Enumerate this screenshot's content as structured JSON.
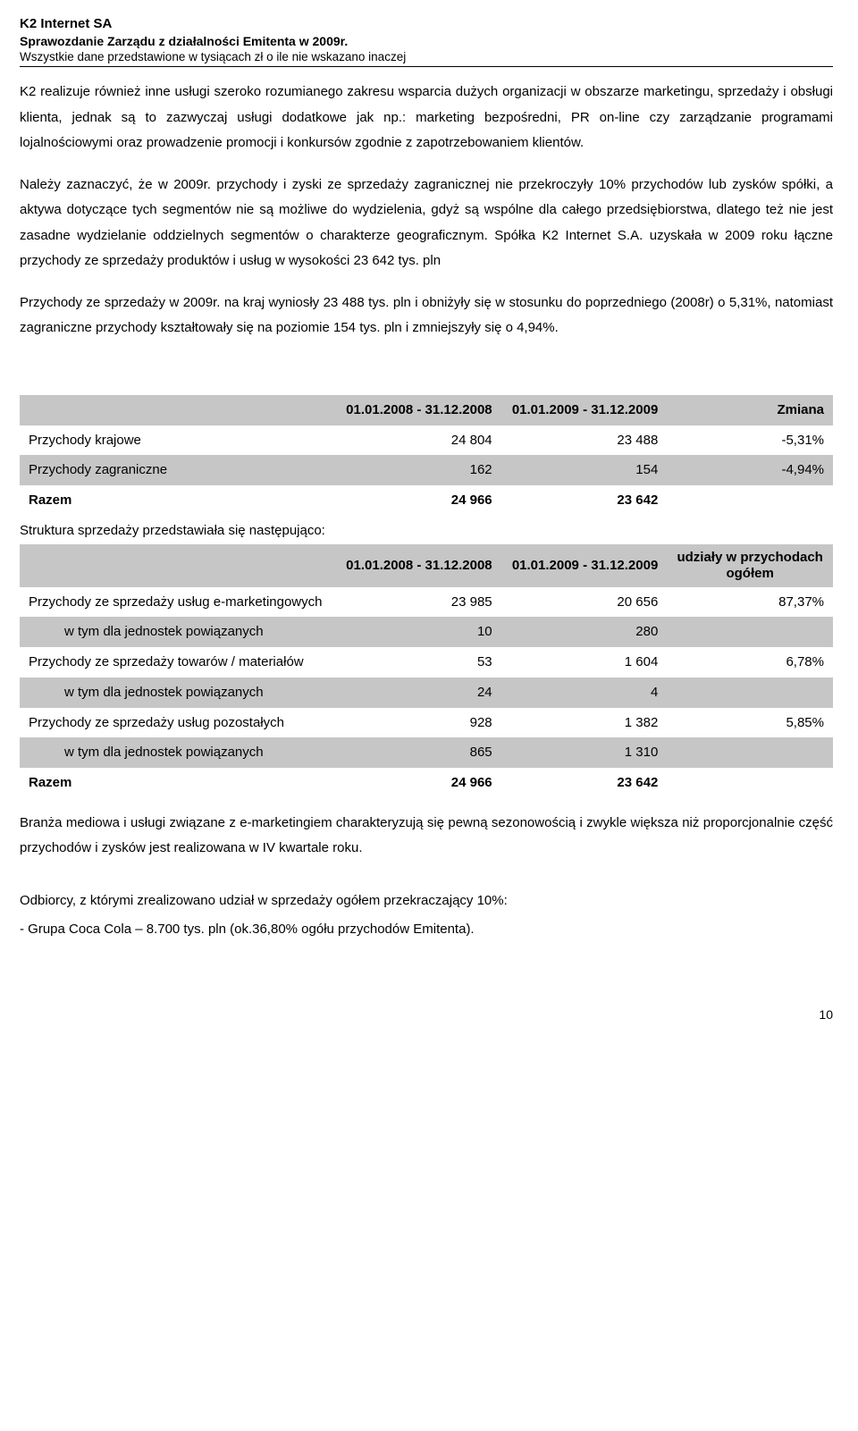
{
  "header": {
    "company": "K2 Internet SA",
    "report_title": "Sprawozdanie Zarządu z działalności Emitenta w 2009r.",
    "disclaimer": "Wszystkie dane przedstawione w tysiącach zł o ile nie wskazano inaczej"
  },
  "paragraphs": {
    "p1": "K2 realizuje również inne usługi szeroko rozumianego zakresu wsparcia dużych organizacji w obszarze marketingu, sprzedaży i obsługi klienta, jednak są to zazwyczaj usługi dodatkowe jak np.: marketing bezpośredni, PR on-line czy zarządzanie programami lojalnościowymi oraz prowadzenie promocji i konkursów zgodnie z zapotrzebowaniem klientów.",
    "p2": "Należy zaznaczyć, że w 2009r. przychody i zyski ze sprzedaży zagranicznej nie przekroczyły 10% przychodów lub zysków spółki, a aktywa dotyczące tych segmentów nie są możliwe do wydzielenia, gdyż są wspólne dla całego przedsiębiorstwa, dlatego też nie jest zasadne wydzielanie oddzielnych segmentów o charakterze geograficznym. Spółka K2 Internet S.A. uzyskała w 2009 roku łączne przychody ze sprzedaży produktów i usług w wysokości 23 642 tys. pln",
    "p3": "Przychody ze sprzedaży w 2009r. na kraj wyniosły 23 488 tys. pln i obniżyły się w stosunku do poprzedniego (2008r) o 5,31%, natomiast zagraniczne przychody kształtowały się na poziomie 154 tys. pln i zmniejszyły się o 4,94%.",
    "structure_note": "Struktura sprzedaży przedstawiała się następująco:",
    "p4": "Branża mediowa i usługi związane z e-marketingiem charakteryzują się pewną sezonowością i zwykle większa niż proporcjonalnie część przychodów i zysków jest realizowana w IV kwartale roku.",
    "p5": "Odbiorcy, z którymi zrealizowano udział w sprzedaży ogółem przekraczający 10%:",
    "p6": "- Grupa Coca Cola – 8.700 tys. pln (ok.36,80% ogółu przychodów Emitenta)."
  },
  "table1": {
    "period1": "01.01.2008 - 31.12.2008",
    "period2": "01.01.2009 - 31.12.2009",
    "change_label": "Zmiana",
    "rows": [
      {
        "label": "Przychody krajowe",
        "v1": "24 804",
        "v2": "23 488",
        "chg": "-5,31%",
        "shade": false
      },
      {
        "label": "Przychody zagraniczne",
        "v1": "162",
        "v2": "154",
        "chg": "-4,94%",
        "shade": true
      }
    ],
    "total_label": "Razem",
    "total_v1": "24 966",
    "total_v2": "23 642"
  },
  "table2": {
    "period1": "01.01.2008 - 31.12.2008",
    "period2": "01.01.2009 - 31.12.2009",
    "share_label": "udziały w przychodach ogółem",
    "rows": [
      {
        "label": "Przychody ze sprzedaży usług e-marketingowych",
        "v1": "23 985",
        "v2": "20 656",
        "chg": "87,37%",
        "shade": false,
        "indent": false
      },
      {
        "label": "w tym dla jednostek powiązanych",
        "v1": "10",
        "v2": "280",
        "chg": "",
        "shade": true,
        "indent": true
      },
      {
        "label": "Przychody ze sprzedaży towarów / materiałów",
        "v1": "53",
        "v2": "1 604",
        "chg": "6,78%",
        "shade": false,
        "indent": false
      },
      {
        "label": "w tym dla jednostek powiązanych",
        "v1": "24",
        "v2": "4",
        "chg": "",
        "shade": true,
        "indent": true
      },
      {
        "label": "Przychody ze sprzedaży usług pozostałych",
        "v1": "928",
        "v2": "1 382",
        "chg": "5,85%",
        "shade": false,
        "indent": false
      },
      {
        "label": "w tym dla jednostek powiązanych",
        "v1": "865",
        "v2": "1 310",
        "chg": "",
        "shade": true,
        "indent": true
      }
    ],
    "total_label": "Razem",
    "total_v1": "24 966",
    "total_v2": "23 642"
  },
  "page_number": "10",
  "colors": {
    "shade": "#c6c6c6",
    "text": "#000000",
    "bg": "#ffffff"
  }
}
